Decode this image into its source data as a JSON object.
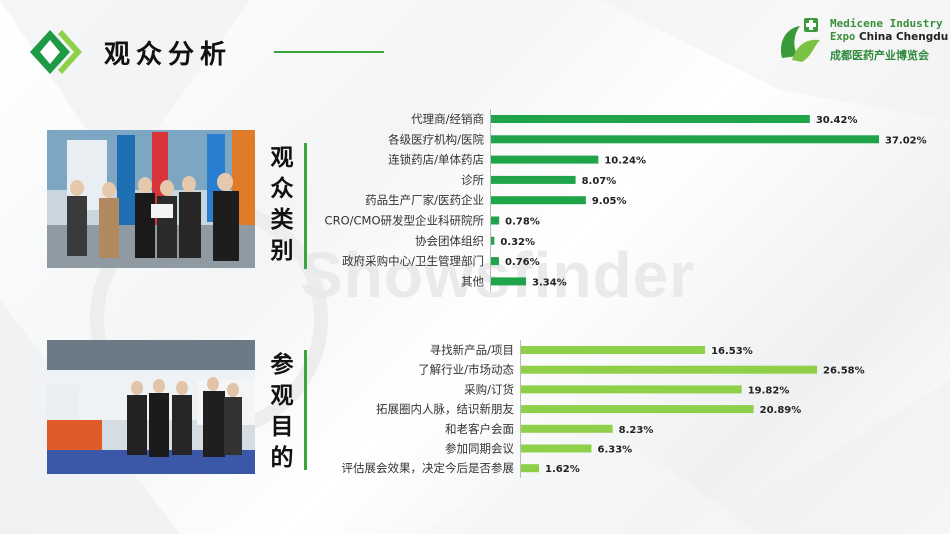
{
  "header": {
    "title": "观众分析",
    "accent_color": "#3da53f"
  },
  "logo": {
    "line1": "Medicene Industry",
    "line2_en": "Expo",
    "line2_city": "China Chengdu",
    "line3": "成都医药产业博览会"
  },
  "watermark": "Showsfinder",
  "sections": {
    "audience_type_title": "观众类别",
    "visit_purpose_title": "参观目的"
  },
  "chart_data": [
    {
      "type": "bar",
      "orientation": "horizontal",
      "section": "观众类别",
      "color": "#1fa44a",
      "categories": [
        "代理商/经销商",
        "各级医疗机构/医院",
        "连锁药店/单体药店",
        "诊所",
        "药品生产厂家/医药企业",
        "CRO/CMO研发型企业科研院所",
        "协会团体组织",
        "政府采购中心/卫生管理部门",
        "其他"
      ],
      "values": [
        30.42,
        37.02,
        10.24,
        8.07,
        9.05,
        0.78,
        0.32,
        0.76,
        3.34
      ],
      "labels": [
        "30.42%",
        "37.02%",
        "10.24%",
        "8.07%",
        "9.05%",
        "0.78%",
        "0.32%",
        "0.76%",
        "3.34%"
      ],
      "xlim": [
        0,
        37.02
      ]
    },
    {
      "type": "bar",
      "orientation": "horizontal",
      "section": "参观目的",
      "color": "#8fd04b",
      "categories": [
        "寻找新产品/项目",
        "了解行业/市场动态",
        "采购/订货",
        "拓展圈内人脉，结识新朋友",
        "和老客户会面",
        "参加同期会议",
        "评估展会效果，决定今后是否参展"
      ],
      "values": [
        16.53,
        26.58,
        19.82,
        20.89,
        8.23,
        6.33,
        1.62
      ],
      "labels": [
        "16.53%",
        "26.58%",
        "19.82%",
        "20.89%",
        "8.23%",
        "6.33%",
        "1.62%"
      ],
      "xlim": [
        0,
        26.58
      ]
    }
  ]
}
